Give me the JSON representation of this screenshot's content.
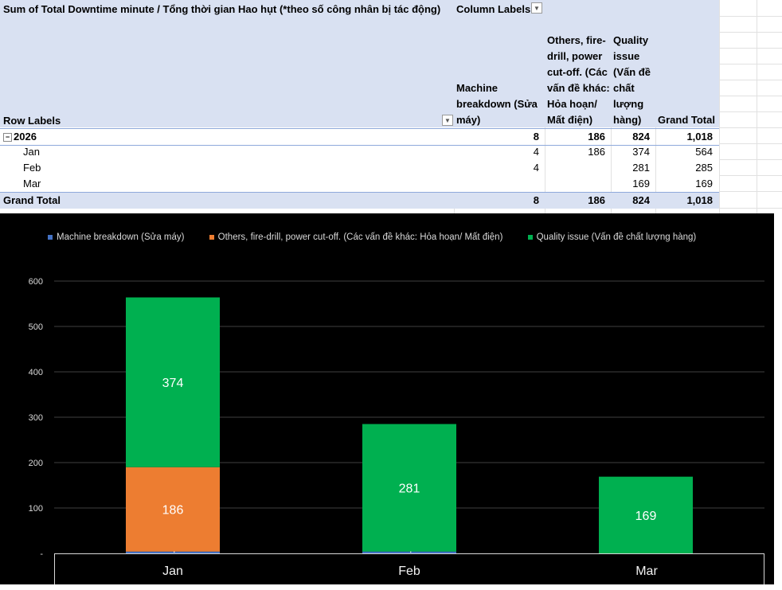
{
  "pivot": {
    "title": "Sum of Total Downtime minute / Tổng thời gian Hao hụt (*theo số công nhân bị tác động)",
    "column_labels": "Column Labels",
    "row_labels": "Row Labels",
    "columns": [
      [
        "Machine",
        "breakdown (Sửa",
        "máy)"
      ],
      [
        "Others, fire-",
        "drill, power",
        "cut-off. (Các",
        "vấn đề khác:",
        "Hỏa hoạn/",
        "Mất điện)"
      ],
      [
        "Quality",
        "issue",
        "(Vấn đề",
        "chất",
        "lượng",
        "hàng)"
      ],
      [
        "Grand Total"
      ]
    ],
    "rows": [
      {
        "label": "2026",
        "values": [
          "8",
          "186",
          "824",
          "1,018"
        ]
      },
      {
        "label": "Jan",
        "values": [
          "4",
          "186",
          "374",
          "564"
        ]
      },
      {
        "label": "Feb",
        "values": [
          "4",
          "",
          "281",
          "285"
        ]
      },
      {
        "label": "Mar",
        "values": [
          "",
          "",
          "169",
          "169"
        ]
      },
      {
        "label": "Grand Total",
        "values": [
          "8",
          "186",
          "824",
          "1,018"
        ]
      }
    ]
  },
  "chart_data": {
    "type": "bar",
    "stacked": true,
    "categories": [
      "Jan",
      "Feb",
      "Mar"
    ],
    "series": [
      {
        "name": "Machine breakdown (Sửa máy)",
        "values": [
          4,
          4,
          0
        ],
        "color": "#4472c4"
      },
      {
        "name": "Others, fire-drill, power cut-off. (Các vấn đề khác: Hỏa hoạn/ Mất điện)",
        "values": [
          186,
          0,
          0
        ],
        "color": "#ed7d31"
      },
      {
        "name": "Quality issue (Vấn đề chất lượng hàng)",
        "values": [
          374,
          281,
          169
        ],
        "color": "#00b050"
      }
    ],
    "data_labels": [
      [
        "4",
        "4",
        ""
      ],
      [
        "186",
        "",
        ""
      ],
      [
        "374",
        "281",
        "169"
      ]
    ],
    "y_ticks": [
      "-",
      "100",
      "200",
      "300",
      "400",
      "500",
      "600"
    ],
    "ylim": [
      0,
      600
    ],
    "grid": true,
    "legend_position": "top",
    "background": "#000000"
  }
}
